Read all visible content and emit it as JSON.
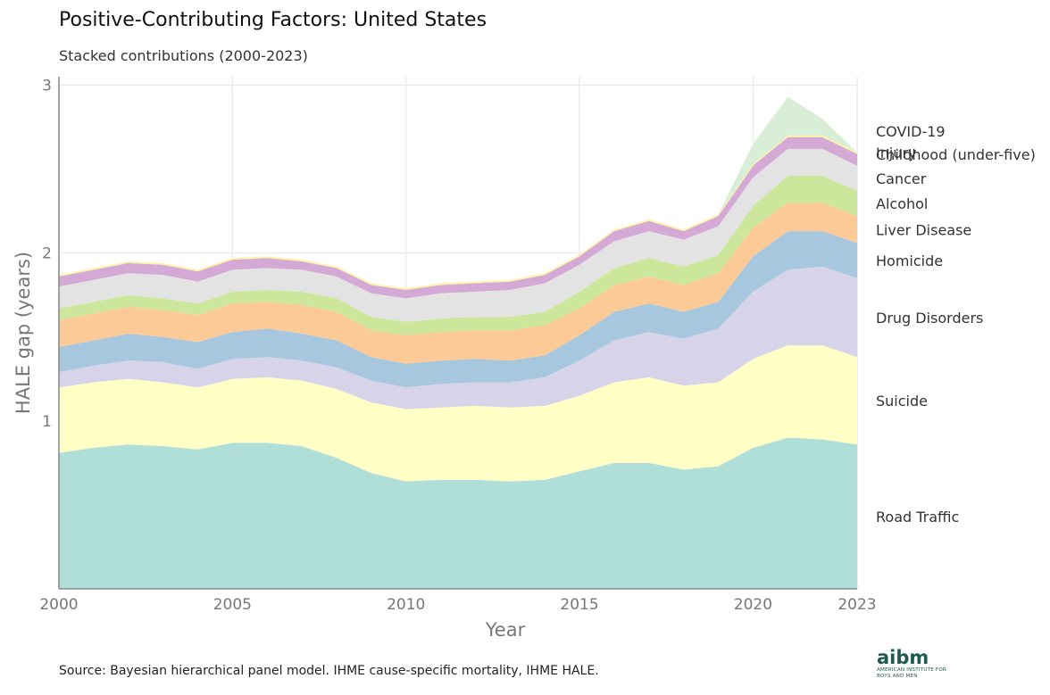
{
  "header": {
    "title": "Positive-Contributing Factors: United States",
    "subtitle": "Stacked contributions (2000-2023)"
  },
  "footer": {
    "source": "Source: Bayesian hierarchical panel model. IHME cause-specific mortality, IHME HALE.",
    "logo_text": "aibm",
    "logo_subtext": "AMERICAN INSTITUTE FOR BOYS AND MEN"
  },
  "chart_data": {
    "type": "area",
    "stacked": true,
    "title": "Positive-Contributing Factors: United States",
    "subtitle": "Stacked contributions (2000-2023)",
    "xlabel": "Year",
    "ylabel": "HALE gap (years)",
    "xlim": [
      2000,
      2023
    ],
    "ylim": [
      0,
      3.05
    ],
    "x_ticks": [
      2000,
      2005,
      2010,
      2015,
      2020,
      2023
    ],
    "y_ticks": [
      1,
      2,
      3
    ],
    "grid": true,
    "legend": "right-edge labels",
    "x": [
      2000,
      2001,
      2002,
      2003,
      2004,
      2005,
      2006,
      2007,
      2008,
      2009,
      2010,
      2011,
      2012,
      2013,
      2014,
      2015,
      2016,
      2017,
      2018,
      2019,
      2020,
      2021,
      2022,
      2023
    ],
    "series": [
      {
        "name": "Road Traffic",
        "color": "#afdfd8",
        "values": [
          0.81,
          0.84,
          0.86,
          0.85,
          0.83,
          0.87,
          0.87,
          0.85,
          0.78,
          0.69,
          0.64,
          0.65,
          0.65,
          0.64,
          0.65,
          0.7,
          0.75,
          0.75,
          0.71,
          0.73,
          0.84,
          0.9,
          0.89,
          0.86
        ]
      },
      {
        "name": "Suicide",
        "color": "#ffffc6",
        "values": [
          0.39,
          0.39,
          0.39,
          0.38,
          0.37,
          0.38,
          0.39,
          0.39,
          0.41,
          0.42,
          0.43,
          0.43,
          0.44,
          0.44,
          0.44,
          0.45,
          0.48,
          0.51,
          0.5,
          0.5,
          0.53,
          0.55,
          0.56,
          0.52
        ]
      },
      {
        "name": "Drug Disorders",
        "color": "#d7d3e8",
        "values": [
          0.09,
          0.1,
          0.11,
          0.12,
          0.11,
          0.12,
          0.12,
          0.12,
          0.13,
          0.13,
          0.13,
          0.14,
          0.14,
          0.15,
          0.17,
          0.21,
          0.25,
          0.27,
          0.28,
          0.32,
          0.4,
          0.45,
          0.47,
          0.47
        ]
      },
      {
        "name": "Homicide",
        "color": "#a7c7df",
        "values": [
          0.15,
          0.15,
          0.16,
          0.15,
          0.16,
          0.16,
          0.17,
          0.16,
          0.16,
          0.14,
          0.14,
          0.14,
          0.14,
          0.13,
          0.13,
          0.15,
          0.17,
          0.17,
          0.16,
          0.16,
          0.21,
          0.23,
          0.21,
          0.21
        ]
      },
      {
        "name": "Liver Disease",
        "color": "#fcca97",
        "values": [
          0.16,
          0.16,
          0.16,
          0.16,
          0.16,
          0.17,
          0.16,
          0.17,
          0.17,
          0.16,
          0.17,
          0.17,
          0.17,
          0.18,
          0.18,
          0.16,
          0.16,
          0.16,
          0.16,
          0.17,
          0.17,
          0.17,
          0.17,
          0.16
        ]
      },
      {
        "name": "Alcohol",
        "color": "#cce79c",
        "values": [
          0.07,
          0.07,
          0.07,
          0.07,
          0.07,
          0.07,
          0.07,
          0.08,
          0.08,
          0.08,
          0.08,
          0.08,
          0.08,
          0.08,
          0.08,
          0.1,
          0.1,
          0.11,
          0.11,
          0.11,
          0.13,
          0.16,
          0.16,
          0.15
        ]
      },
      {
        "name": "Cancer",
        "color": "#e3e3e3",
        "values": [
          0.13,
          0.13,
          0.13,
          0.14,
          0.13,
          0.13,
          0.13,
          0.13,
          0.13,
          0.14,
          0.14,
          0.15,
          0.15,
          0.16,
          0.17,
          0.16,
          0.16,
          0.16,
          0.16,
          0.17,
          0.17,
          0.16,
          0.16,
          0.15
        ]
      },
      {
        "name": "Childhood (under-five)",
        "color": "#d4a9d6",
        "values": [
          0.06,
          0.06,
          0.06,
          0.06,
          0.06,
          0.06,
          0.06,
          0.05,
          0.05,
          0.05,
          0.05,
          0.05,
          0.05,
          0.05,
          0.05,
          0.05,
          0.06,
          0.06,
          0.05,
          0.06,
          0.07,
          0.07,
          0.07,
          0.07
        ]
      },
      {
        "name": "Injury",
        "color": "#fdf2a6",
        "values": [
          0.01,
          0.01,
          0.01,
          0.01,
          0.01,
          0.01,
          0.01,
          0.01,
          0.01,
          0.01,
          0.01,
          0.01,
          0.01,
          0.01,
          0.01,
          0.01,
          0.01,
          0.01,
          0.01,
          0.01,
          0.01,
          0.01,
          0.01,
          0.01
        ]
      },
      {
        "name": "COVID-19",
        "color": "#d9eed6",
        "values": [
          0,
          0,
          0,
          0,
          0,
          0,
          0,
          0,
          0,
          0,
          0,
          0,
          0,
          0,
          0,
          0,
          0,
          0,
          0,
          0,
          0.12,
          0.23,
          0.1,
          0
        ]
      }
    ]
  }
}
